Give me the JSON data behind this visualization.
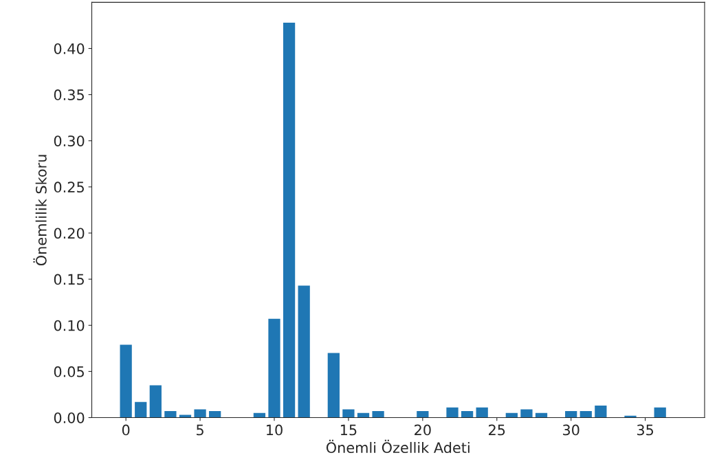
{
  "chart_data": {
    "type": "bar",
    "xlabel": "Önemli Özellik Adeti",
    "ylabel": "Önemlilik Skoru",
    "x": [
      0,
      1,
      2,
      3,
      4,
      5,
      6,
      7,
      8,
      9,
      10,
      11,
      12,
      13,
      14,
      15,
      16,
      17,
      18,
      19,
      20,
      21,
      22,
      23,
      24,
      25,
      26,
      27,
      28,
      29,
      30,
      31,
      32,
      33,
      34,
      35,
      36
    ],
    "values": [
      0.079,
      0.017,
      0.035,
      0.007,
      0.003,
      0.009,
      0.007,
      0,
      0,
      0.005,
      0.107,
      0.428,
      0.143,
      0,
      0.07,
      0.009,
      0.005,
      0.007,
      0,
      0,
      0.007,
      0,
      0.011,
      0.007,
      0.011,
      0,
      0.005,
      0.009,
      0.005,
      0,
      0.007,
      0.007,
      0.013,
      0,
      0.002,
      0,
      0.011
    ],
    "color": "#1f77b4",
    "xlim": [
      -2.3,
      39
    ],
    "xticks": [
      0,
      5,
      10,
      15,
      20,
      25,
      30,
      35
    ],
    "ylim": [
      0,
      0.45
    ],
    "yticks": [
      {
        "value": 0,
        "label": "0.00"
      },
      {
        "value": 0.05,
        "label": "0.05"
      },
      {
        "value": 0.1,
        "label": "0.10"
      },
      {
        "value": 0.15,
        "label": "0.15"
      },
      {
        "value": 0.2,
        "label": "0.20"
      },
      {
        "value": 0.25,
        "label": "0.25"
      },
      {
        "value": 0.3,
        "label": "0.30"
      },
      {
        "value": 0.35,
        "label": "0.35"
      },
      {
        "value": 0.4,
        "label": "0.40"
      }
    ],
    "grid": false
  }
}
